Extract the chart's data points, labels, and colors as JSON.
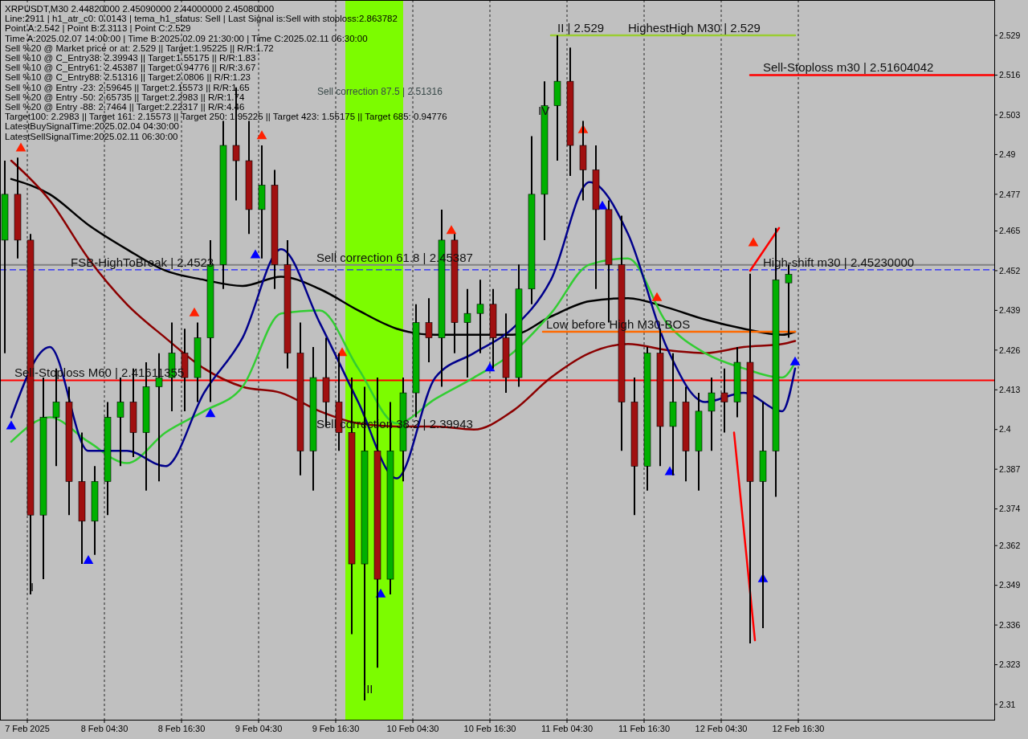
{
  "chart_data": {
    "type": "candlestick",
    "title": "XRPUSDT,M30  2.44820000 2.45090000 2.44000000 2.45080000",
    "x": [
      "2025-02-07T13:00",
      "2025-02-07T15:00",
      "2025-02-07T17:00",
      "2025-02-07T19:00",
      "2025-02-07T21:00",
      "2025-02-07T23:00",
      "2025-02-08T01:00",
      "2025-02-08T03:00",
      "2025-02-08T05:00",
      "2025-02-08T07:00",
      "2025-02-08T09:00",
      "2025-02-08T11:00",
      "2025-02-08T13:00",
      "2025-02-08T15:00",
      "2025-02-08T17:00",
      "2025-02-08T19:00",
      "2025-02-08T21:00",
      "2025-02-08T23:00",
      "2025-02-09T01:00",
      "2025-02-09T03:00",
      "2025-02-09T05:00",
      "2025-02-09T07:00",
      "2025-02-09T09:00",
      "2025-02-09T11:00",
      "2025-02-09T13:00",
      "2025-02-09T15:00",
      "2025-02-09T17:00",
      "2025-02-09T19:00",
      "2025-02-09T21:00",
      "2025-02-09T23:00",
      "2025-02-10T01:00",
      "2025-02-10T03:00",
      "2025-02-10T05:00",
      "2025-02-10T07:00",
      "2025-02-10T09:00",
      "2025-02-10T11:00",
      "2025-02-10T13:00",
      "2025-02-10T15:00",
      "2025-02-10T17:00",
      "2025-02-10T19:00",
      "2025-02-10T21:00",
      "2025-02-10T23:00",
      "2025-02-11T01:00",
      "2025-02-11T03:00",
      "2025-02-11T05:00",
      "2025-02-11T07:00",
      "2025-02-11T09:00",
      "2025-02-11T11:00",
      "2025-02-11T13:00",
      "2025-02-11T15:00",
      "2025-02-11T17:00",
      "2025-02-11T19:00",
      "2025-02-11T21:00",
      "2025-02-11T23:00",
      "2025-02-12T01:00",
      "2025-02-12T03:00",
      "2025-02-12T05:00",
      "2025-02-12T07:00",
      "2025-02-12T09:00",
      "2025-02-12T11:00",
      "2025-02-12T13:00",
      "2025-02-12T15:00"
    ],
    "ohlc": [
      [
        2.462,
        2.488,
        2.425,
        2.477
      ],
      [
        2.477,
        2.489,
        2.456,
        2.462
      ],
      [
        2.462,
        2.464,
        2.346,
        2.372
      ],
      [
        2.372,
        2.417,
        2.351,
        2.404
      ],
      [
        2.404,
        2.42,
        2.388,
        2.409
      ],
      [
        2.409,
        2.414,
        2.372,
        2.383
      ],
      [
        2.383,
        2.399,
        2.356,
        2.37
      ],
      [
        2.37,
        2.388,
        2.359,
        2.383
      ],
      [
        2.383,
        2.409,
        2.372,
        2.404
      ],
      [
        2.404,
        2.417,
        2.388,
        2.409
      ],
      [
        2.409,
        2.42,
        2.391,
        2.399
      ],
      [
        2.399,
        2.422,
        2.38,
        2.414
      ],
      [
        2.414,
        2.425,
        2.383,
        2.417
      ],
      [
        2.417,
        2.435,
        2.406,
        2.425
      ],
      [
        2.425,
        2.433,
        2.406,
        2.417
      ],
      [
        2.417,
        2.435,
        2.409,
        2.43
      ],
      [
        2.43,
        2.462,
        2.409,
        2.454
      ],
      [
        2.454,
        2.501,
        2.446,
        2.493
      ],
      [
        2.493,
        2.512,
        2.475,
        2.488
      ],
      [
        2.488,
        2.501,
        2.464,
        2.472
      ],
      [
        2.472,
        2.493,
        2.456,
        2.48
      ],
      [
        2.48,
        2.485,
        2.446,
        2.454
      ],
      [
        2.454,
        2.462,
        2.42,
        2.425
      ],
      [
        2.425,
        2.435,
        2.385,
        2.393
      ],
      [
        2.393,
        2.427,
        2.38,
        2.417
      ],
      [
        2.417,
        2.43,
        2.401,
        2.409
      ],
      [
        2.409,
        2.425,
        2.393,
        2.399
      ],
      [
        2.399,
        2.417,
        2.333,
        2.356
      ],
      [
        2.356,
        2.414,
        2.3113,
        2.393
      ],
      [
        2.393,
        2.417,
        2.322,
        2.351
      ],
      [
        2.351,
        2.409,
        2.346,
        2.393
      ],
      [
        2.393,
        2.417,
        2.383,
        2.412
      ],
      [
        2.412,
        2.441,
        2.404,
        2.435
      ],
      [
        2.435,
        2.443,
        2.422,
        2.43
      ],
      [
        2.43,
        2.472,
        2.414,
        2.462
      ],
      [
        2.462,
        2.464,
        2.425,
        2.435
      ],
      [
        2.435,
        2.446,
        2.417,
        2.438
      ],
      [
        2.438,
        2.449,
        2.425,
        2.441
      ],
      [
        2.441,
        2.446,
        2.42,
        2.43
      ],
      [
        2.43,
        2.438,
        2.412,
        2.417
      ],
      [
        2.417,
        2.454,
        2.414,
        2.446
      ],
      [
        2.446,
        2.496,
        2.441,
        2.477
      ],
      [
        2.477,
        2.514,
        2.462,
        2.506
      ],
      [
        2.506,
        2.529,
        2.488,
        2.514
      ],
      [
        2.514,
        2.525,
        2.483,
        2.493
      ],
      [
        2.493,
        2.501,
        2.475,
        2.485
      ],
      [
        2.485,
        2.493,
        2.446,
        2.472
      ],
      [
        2.472,
        2.475,
        2.435,
        2.454
      ],
      [
        2.454,
        2.47,
        2.393,
        2.409
      ],
      [
        2.409,
        2.417,
        2.372,
        2.388
      ],
      [
        2.388,
        2.427,
        2.38,
        2.425
      ],
      [
        2.425,
        2.433,
        2.388,
        2.401
      ],
      [
        2.401,
        2.425,
        2.385,
        2.409
      ],
      [
        2.409,
        2.414,
        2.383,
        2.393
      ],
      [
        2.393,
        2.412,
        2.38,
        2.406
      ],
      [
        2.406,
        2.417,
        2.393,
        2.412
      ],
      [
        2.412,
        2.42,
        2.399,
        2.409
      ],
      [
        2.409,
        2.427,
        2.404,
        2.422
      ],
      [
        2.422,
        2.451,
        2.33,
        2.383
      ],
      [
        2.383,
        2.409,
        2.335,
        2.393
      ],
      [
        2.393,
        2.466,
        2.378,
        2.449
      ],
      [
        2.448,
        2.454,
        2.43,
        2.4508
      ]
    ],
    "xlim": [
      "2025-02-07T12:15",
      "2025-02-13T23:00"
    ],
    "xticks": [
      {
        "value": "2025-02-07T16:30",
        "label": "7 Feb 2025"
      },
      {
        "value": "2025-02-08T04:30",
        "label": "8 Feb 04:30"
      },
      {
        "value": "2025-02-08T16:30",
        "label": "8 Feb 16:30"
      },
      {
        "value": "2025-02-09T04:30",
        "label": "9 Feb 04:30"
      },
      {
        "value": "2025-02-09T16:30",
        "label": "9 Feb 16:30"
      },
      {
        "value": "2025-02-10T04:30",
        "label": "10 Feb 04:30"
      },
      {
        "value": "2025-02-10T16:30",
        "label": "10 Feb 16:30"
      },
      {
        "value": "2025-02-11T04:30",
        "label": "11 Feb 04:30"
      },
      {
        "value": "2025-02-11T16:30",
        "label": "11 Feb 16:30"
      },
      {
        "value": "2025-02-12T04:30",
        "label": "12 Feb 04:30"
      },
      {
        "value": "2025-02-12T16:30",
        "label": "12 Feb 16:30"
      }
    ],
    "ylim": [
      2.305,
      2.5406
    ],
    "yticks": [
      2.31,
      2.323,
      2.336,
      2.349,
      2.362,
      2.374,
      2.387,
      2.4,
      2.413,
      2.426,
      2.439,
      2.452,
      2.465,
      2.477,
      2.49,
      2.503,
      2.516,
      2.529
    ],
    "grid": "x",
    "series": [
      {
        "type": "line",
        "color": "#000000",
        "x": [
          "2025-02-07T14:00",
          "2025-02-07T20:00",
          "2025-02-08T02:00",
          "2025-02-08T08:00",
          "2025-02-08T14:00",
          "2025-02-08T20:00",
          "2025-02-09T02:00",
          "2025-02-09T08:00",
          "2025-02-09T14:00",
          "2025-02-09T20:00",
          "2025-02-10T02:00",
          "2025-02-10T08:00",
          "2025-02-10T14:00",
          "2025-02-10T20:00",
          "2025-02-11T02:00",
          "2025-02-11T08:00",
          "2025-02-11T14:00",
          "2025-02-11T20:00",
          "2025-02-12T02:00",
          "2025-02-12T08:00",
          "2025-02-12T14:00",
          "2025-02-12T16:00"
        ],
        "values": [
          2.482,
          2.477,
          2.467,
          2.459,
          2.452,
          2.449,
          2.447,
          2.45,
          2.446,
          2.439,
          2.433,
          2.431,
          2.431,
          2.431,
          2.437,
          2.442,
          2.443,
          2.44,
          2.436,
          2.433,
          2.431,
          2.432
        ]
      },
      {
        "type": "line",
        "color": "#8b0000",
        "x": [
          "2025-02-07T14:00",
          "2025-02-07T20:00",
          "2025-02-08T02:00",
          "2025-02-08T08:00",
          "2025-02-08T14:00",
          "2025-02-08T20:00",
          "2025-02-09T02:00",
          "2025-02-09T08:00",
          "2025-02-09T14:00",
          "2025-02-09T20:00",
          "2025-02-10T02:00",
          "2025-02-10T08:00",
          "2025-02-10T14:00",
          "2025-02-10T20:00",
          "2025-02-11T02:00",
          "2025-02-11T08:00",
          "2025-02-11T14:00",
          "2025-02-11T20:00",
          "2025-02-12T02:00",
          "2025-02-12T08:00",
          "2025-02-12T14:00",
          "2025-02-12T16:00"
        ],
        "values": [
          2.488,
          2.475,
          2.456,
          2.441,
          2.43,
          2.42,
          2.414,
          2.412,
          2.406,
          2.402,
          2.401,
          2.401,
          2.4,
          2.406,
          2.417,
          2.425,
          2.428,
          2.426,
          2.425,
          2.427,
          2.428,
          2.429
        ]
      },
      {
        "type": "line",
        "color": "#32cd32",
        "x": [
          "2025-02-07T14:00",
          "2025-02-07T20:00",
          "2025-02-08T02:00",
          "2025-02-08T08:00",
          "2025-02-08T14:00",
          "2025-02-08T20:00",
          "2025-02-09T02:00",
          "2025-02-09T08:00",
          "2025-02-09T14:00",
          "2025-02-09T20:00",
          "2025-02-10T02:00",
          "2025-02-10T08:00",
          "2025-02-10T14:00",
          "2025-02-10T20:00",
          "2025-02-11T02:00",
          "2025-02-11T08:00",
          "2025-02-11T14:00",
          "2025-02-11T20:00",
          "2025-02-12T02:00",
          "2025-02-12T08:00",
          "2025-02-12T14:00",
          "2025-02-12T16:00"
        ],
        "values": [
          2.396,
          2.404,
          2.396,
          2.389,
          2.399,
          2.406,
          2.414,
          2.438,
          2.439,
          2.42,
          2.402,
          2.41,
          2.417,
          2.425,
          2.438,
          2.454,
          2.456,
          2.435,
          2.425,
          2.42,
          2.417,
          2.422
        ]
      },
      {
        "type": "line",
        "color": "#00008b",
        "x": [
          "2025-02-07T14:00",
          "2025-02-07T20:00",
          "2025-02-08T02:00",
          "2025-02-08T08:00",
          "2025-02-08T14:00",
          "2025-02-08T20:00",
          "2025-02-09T02:00",
          "2025-02-09T08:00",
          "2025-02-09T14:00",
          "2025-02-09T20:00",
          "2025-02-10T02:00",
          "2025-02-10T08:00",
          "2025-02-10T14:00",
          "2025-02-10T20:00",
          "2025-02-11T02:00",
          "2025-02-11T08:00",
          "2025-02-11T14:00",
          "2025-02-11T20:00",
          "2025-02-12T02:00",
          "2025-02-12T08:00",
          "2025-02-12T14:00",
          "2025-02-12T16:00"
        ],
        "values": [
          2.404,
          2.427,
          2.393,
          2.393,
          2.388,
          2.412,
          2.43,
          2.459,
          2.435,
          2.409,
          2.384,
          2.417,
          2.425,
          2.433,
          2.449,
          2.481,
          2.464,
          2.427,
          2.409,
          2.412,
          2.406,
          2.42
        ]
      },
      {
        "type": "line",
        "color": "#9acd32",
        "x": [
          "2025-02-11T02:00",
          "2025-02-12T16:00"
        ],
        "values": [
          2.529,
          2.529
        ]
      },
      {
        "type": "line",
        "color": "#ff0000",
        "x": [
          "2025-02-12T09:00",
          "2025-02-13T23:00"
        ],
        "values": [
          2.516,
          2.516
        ]
      },
      {
        "type": "line",
        "color": "#ff6a00",
        "x": [
          "2025-02-11T00:45",
          "2025-02-12T16:00"
        ],
        "values": [
          2.432,
          2.432
        ]
      },
      {
        "type": "line",
        "color": "#ff0000",
        "x": [
          "2025-02-12T09:00",
          "2025-02-12T13:30"
        ],
        "values": [
          2.452,
          2.466
        ]
      },
      {
        "type": "line",
        "color": "#ff0000",
        "x": [
          "2025-02-12T06:30",
          "2025-02-12T09:45"
        ],
        "values": [
          2.399,
          2.331
        ]
      },
      {
        "type": "scatter",
        "color": "#ff2000",
        "marker": "triangle",
        "x": [
          "2025-02-07T15:30",
          "2025-02-08T18:30",
          "2025-02-09T05:00",
          "2025-02-09T17:30",
          "2025-02-10T10:30",
          "2025-02-11T07:00",
          "2025-02-11T18:30",
          "2025-02-12T09:30"
        ],
        "values": [
          2.492,
          2.438,
          2.496,
          2.425,
          2.465,
          2.498,
          2.443,
          2.461
        ]
      },
      {
        "type": "scatter",
        "color": "#0000ff",
        "marker": "triangle",
        "x": [
          "2025-02-07T14:00",
          "2025-02-08T02:00",
          "2025-02-08T21:00",
          "2025-02-09T04:00",
          "2025-02-09T23:30",
          "2025-02-10T16:30",
          "2025-02-11T10:00",
          "2025-02-11T20:30",
          "2025-02-12T11:00",
          "2025-02-12T16:00"
        ],
        "values": [
          2.401,
          2.357,
          2.405,
          2.457,
          2.346,
          2.42,
          2.473,
          2.386,
          2.351,
          2.422
        ]
      }
    ],
    "ref_lines": [
      {
        "axis": "y",
        "value": 2.41611355,
        "color": "#ff0000",
        "line_style": "solid"
      },
      {
        "axis": "y",
        "value": 2.4523,
        "color": "#2020ff",
        "line_style": "dashed"
      },
      {
        "axis": "y",
        "value": 2.45387,
        "color": "#808080",
        "line_style": "solid"
      }
    ],
    "bands": [
      {
        "axis": "x",
        "from": "2025-02-09T18:00",
        "to": "2025-02-10T03:00",
        "color": "#7cfc00"
      }
    ],
    "annotations": [
      "Line:2911 | h1_atr_c0: 0.0143 | tema_h1_status: Sell | Last Signal is:Sell with stoploss:2.863782",
      "Point A:2.542 | Point B:2.3113 | Point C:2.529",
      "Time A:2025.02.07 14:00:00 | Time B:2025.02.09 21:30:00 | Time C:2025.02.11 06:30:00",
      "Sell %20 @ Market price or at: 2.529 || Target:1.95225 || R/R:1.72",
      "Sell %10 @ C_Entry38: 2.39943 || Target:1.55175 || R/R:1.83",
      "Sell %10 @ C_Entry61: 2.45387 || Target:0.94776 || R/R:3.67",
      "Sell %10 @ C_Entry88: 2.51316 || Target:2.0806 || R/R:1.23",
      "Sell %10 @ Entry -23: 2.59645 || Target:2.15573 || R/R:1.65",
      "Sell %20 @ Entry -50: 2.65735 || Target:2.2983 || R/R:1.74",
      "Sell %20 @ Entry -88: 2.7464 || Target:2.22317 || R/R:4.46",
      "Target100: 2.2983 || Target 161: 2.15573 || Target 250: 1.95225 || Target 423: 1.55175 || Target 685: 0.94776",
      "LatestBuySignalTime:2025.02.04 04:30:00",
      "LatestSellSignalTime:2025.02.11 06:30:00",
      "Sell correction 87.5 | 2.51316",
      {
        "text": "II | 2.529",
        "x": "2025-02-11T03:00",
        "y": 2.529
      },
      {
        "text": "IV",
        "x": "2025-02-11T00:00",
        "y": 2.502
      },
      {
        "text": "III",
        "x": "2025-02-09T20:45",
        "y": 2.3125
      },
      {
        "text": "I",
        "x": "2025-02-07T17:00",
        "y": 2.346
      },
      {
        "text": "HighestHigh    M30 | 2.529",
        "x": "2025-02-11T14:00",
        "y": 2.529
      },
      {
        "text": "Sell-Stoploss m30 | 2.51604042",
        "x": "2025-02-12T11:00",
        "y": 2.51604042
      },
      {
        "text": "High-shift m30 | 2.45230000",
        "x": "2025-02-12T11:00",
        "y": 2.4523
      },
      {
        "text": "Low before High   M30-BOS",
        "x": "2025-02-11T01:15",
        "y": 2.432
      },
      {
        "text": "FSB-HighToBreak | 2.4523",
        "x": "2025-02-07T23:15",
        "y": 2.4523
      },
      {
        "text": "Sell-Stoploss M60 | 2.41611355",
        "x": "2025-02-07T14:30",
        "y": 2.41611355
      },
      {
        "text": "Sell correction 61.8 | 2.45387",
        "x": "2025-02-09T13:30",
        "y": 2.45387
      },
      {
        "text": "Sell correction 38.2 | 2.39943",
        "x": "2025-02-09T13:30",
        "y": 2.39943
      }
    ]
  }
}
